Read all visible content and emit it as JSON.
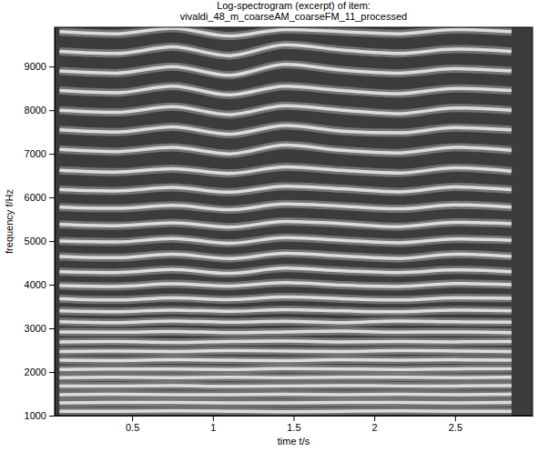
{
  "chart_data": {
    "type": "line",
    "title": [
      "Log-spectrogram (excerpt) of item:",
      "vivaldi_48_m_coarseAM_coarseFM_11_processed"
    ],
    "x_label": "time t/s",
    "y_label": "frequency f/Hz",
    "color": "#dcdcdc",
    "xlim": [
      0.02,
      2.98
    ],
    "ylim": [
      1000,
      9900
    ],
    "xticks": [
      0.5,
      1,
      1.5,
      2,
      2.5
    ],
    "yticks": [
      1000,
      2000,
      3000,
      4000,
      5000,
      6000,
      7000,
      8000,
      9000
    ],
    "x": [
      0.05,
      0.4,
      0.75,
      1.1,
      1.45,
      1.8,
      2.15,
      2.5,
      2.85
    ],
    "series": [
      {
        "values": [
          1100,
          1100,
          1110,
          1100,
          1090,
          1100,
          1110,
          1100,
          1100
        ]
      },
      {
        "values": [
          1290,
          1300,
          1300,
          1290,
          1290,
          1300,
          1300,
          1290,
          1300
        ]
      },
      {
        "values": [
          1480,
          1490,
          1480,
          1480,
          1490,
          1480,
          1490,
          1480,
          1490
        ]
      },
      {
        "values": [
          1680,
          1680,
          1690,
          1670,
          1680,
          1690,
          1680,
          1680,
          1690
        ]
      },
      {
        "values": [
          1870,
          1880,
          1870,
          1880,
          1870,
          1880,
          1880,
          1870,
          1880
        ]
      },
      {
        "values": [
          2060,
          2070,
          2070,
          2060,
          2080,
          2070,
          2060,
          2070,
          2080
        ]
      },
      {
        "values": [
          2270,
          2260,
          2280,
          2270,
          2260,
          2280,
          2270,
          2280,
          2270
        ]
      },
      {
        "values": [
          2470,
          2480,
          2470,
          2490,
          2480,
          2470,
          2490,
          2480,
          2470
        ]
      },
      {
        "values": [
          2690,
          2700,
          2680,
          2700,
          2710,
          2690,
          2700,
          2690,
          2700
        ]
      },
      {
        "values": [
          2920,
          2910,
          2930,
          2900,
          2920,
          2940,
          2910,
          2920,
          2900
        ]
      },
      {
        "values": [
          3150,
          3130,
          3170,
          3140,
          3160,
          3130,
          3170,
          3150,
          3140
        ]
      },
      {
        "values": [
          3400,
          3380,
          3420,
          3390,
          3430,
          3400,
          3380,
          3420,
          3400
        ]
      },
      {
        "values": [
          3680,
          3650,
          3700,
          3660,
          3720,
          3680,
          3650,
          3700,
          3690
        ]
      },
      {
        "values": [
          3980,
          3960,
          4020,
          3970,
          4050,
          3990,
          3960,
          4030,
          4000
        ]
      },
      {
        "values": [
          4300,
          4280,
          4350,
          4260,
          4380,
          4320,
          4280,
          4340,
          4300
        ]
      },
      {
        "values": [
          4650,
          4620,
          4700,
          4600,
          4720,
          4660,
          4600,
          4700,
          4650
        ]
      },
      {
        "values": [
          5000,
          4980,
          5060,
          4950,
          5080,
          5020,
          4960,
          5050,
          5020
        ]
      },
      {
        "values": [
          5380,
          5350,
          5420,
          5320,
          5450,
          5400,
          5330,
          5430,
          5400
        ]
      },
      {
        "values": [
          5780,
          5750,
          5820,
          5720,
          5850,
          5800,
          5740,
          5830,
          5780
        ]
      },
      {
        "values": [
          6180,
          6150,
          6230,
          6120,
          6260,
          6200,
          6130,
          6240,
          6180
        ]
      },
      {
        "values": [
          6620,
          6580,
          6660,
          6550,
          6700,
          6620,
          6560,
          6680,
          6600
        ]
      },
      {
        "values": [
          7100,
          7050,
          7150,
          7000,
          7200,
          7080,
          7020,
          7150,
          7080
        ]
      },
      {
        "values": [
          7550,
          7500,
          7620,
          7450,
          7650,
          7520,
          7480,
          7600,
          7550
        ]
      },
      {
        "values": [
          8000,
          7950,
          8080,
          7900,
          8100,
          8000,
          7920,
          8050,
          8000
        ]
      },
      {
        "values": [
          8450,
          8400,
          8550,
          8350,
          8550,
          8450,
          8380,
          8500,
          8450
        ]
      },
      {
        "values": [
          8900,
          8850,
          9000,
          8800,
          9050,
          8920,
          8850,
          8950,
          8900
        ]
      },
      {
        "values": [
          9350,
          9300,
          9450,
          9250,
          9500,
          9380,
          9300,
          9400,
          9350
        ]
      },
      {
        "values": [
          9800,
          9750,
          9880,
          9700,
          9850,
          9800,
          9750,
          9850,
          9800
        ]
      }
    ]
  }
}
